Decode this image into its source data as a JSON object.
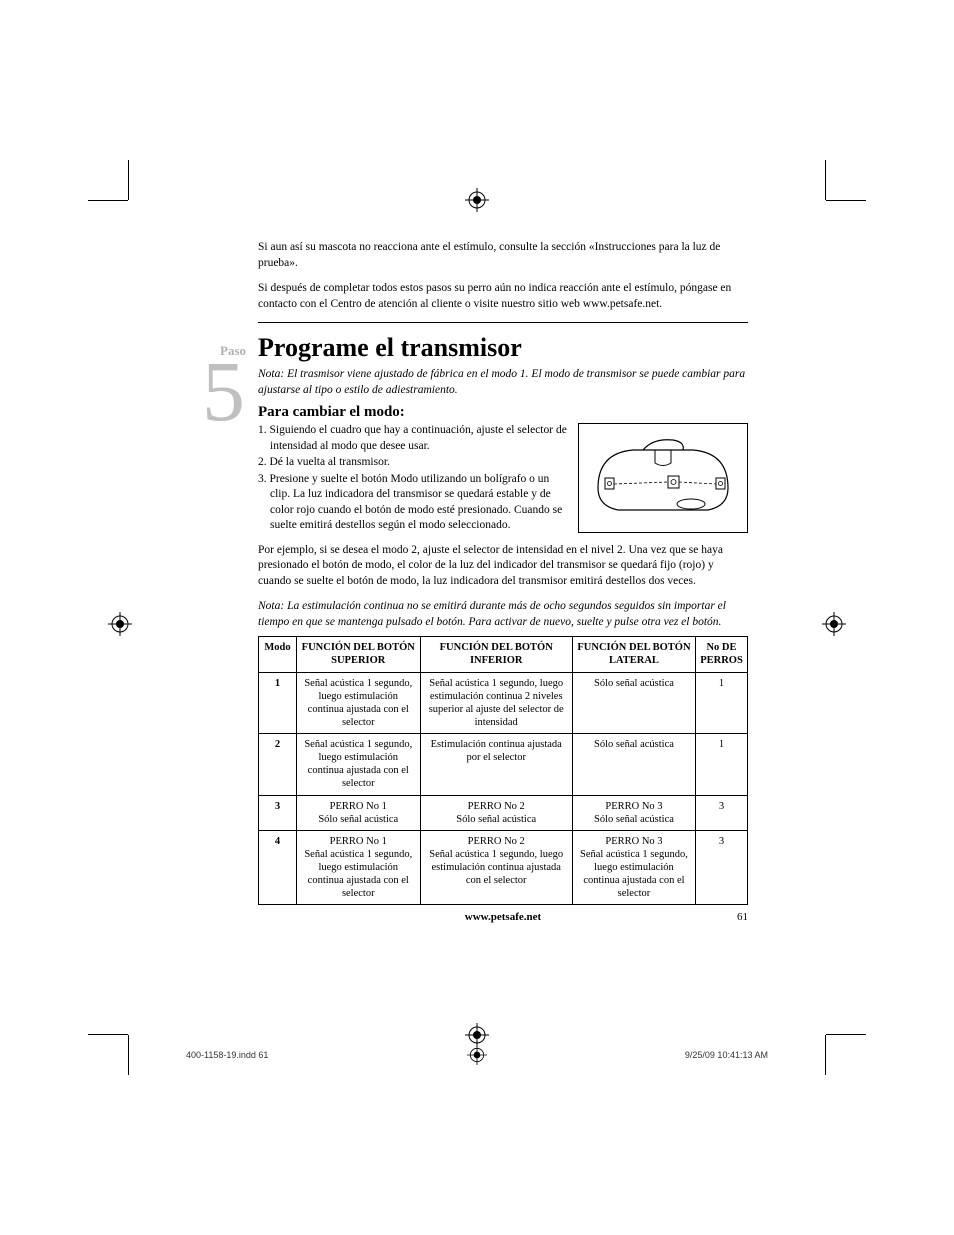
{
  "intro": {
    "p1": "Si aun así su mascota no reacciona ante el estímulo, consulte la sección «Instrucciones para la luz de prueba».",
    "p2": "Si después de completar todos estos pasos su perro aún no indica reacción ante el estímulo, póngase en contacto con el Centro de atención al cliente o visite nuestro sitio web www.petsafe.net."
  },
  "step": {
    "label": "Paso",
    "number": "5",
    "title": "Programe el transmisor",
    "note1": "Nota: El trasmisor viene ajustado de fábrica en el modo 1. El modo de transmisor se puede cambiar para ajustarse al tipo o estilo de adiestramiento.",
    "subtitle": "Para cambiar el modo:",
    "s1": "1. Siguiendo el cuadro que hay a continuación, ajuste el selector de intensidad al modo que desee usar.",
    "s2": "2.  Dé la vuelta al transmisor.",
    "s3": "3. Presione y suelte el botón Modo utilizando un bolígrafo o un clip. La luz indicadora del transmisor se quedará estable y de color rojo  cuando el botón de modo esté presionado. Cuando se suelte emitirá destellos según el modo seleccionado.",
    "example": "Por ejemplo, si se desea el modo 2, ajuste el selector de intensidad en el nivel 2. Una vez que se haya presionado el botón de modo, el color de la luz del indicador del transmisor se quedará fijo (rojo) y cuando se suelte el botón de modo, la luz indicadora del transmisor emitirá destellos dos veces.",
    "note2": "Nota: La estimulación continua no se emitirá durante más de ocho segundos seguidos sin importar el tiempo en que se mantenga pulsado el botón.  Para activar de nuevo, suelte y pulse otra vez el botón."
  },
  "table": {
    "headers": {
      "mode": "Modo",
      "upper": "FUNCIÓN DEL BOTÓN SUPERIOR",
      "lower": "FUNCIÓN DEL BOTÓN INFERIOR",
      "side": "FUNCIÓN DEL BOTÓN LATERAL",
      "dogs": "No DE PERROS"
    },
    "rows": [
      {
        "mode": "1",
        "upper": "Señal acústica 1 segundo, luego estimulación continua ajustada con el selector",
        "lower": "Señal acústica 1 segundo, luego estimulación continua 2 niveles superior al ajuste del selector de intensidad",
        "side": "Sólo  señal acústica",
        "dogs": "1"
      },
      {
        "mode": "2",
        "upper": "Señal acústica 1 segundo, luego estimulación continua ajustada con el selector",
        "lower": "Estimulación continua ajustada por el selector",
        "side": "Sólo señal acústica",
        "dogs": "1"
      },
      {
        "mode": "3",
        "upper": "PERRO No 1\nSólo señal acústica",
        "lower": "PERRO No 2\nSólo señal acústica",
        "side": "PERRO No 3\nSólo señal acústica",
        "dogs": "3"
      },
      {
        "mode": "4",
        "upper": "PERRO No 1\nSeñal acústica 1 segundo, luego estimulación continua ajustada con el selector",
        "lower": "PERRO No 2\nSeñal acústica 1 segundo, luego estimulación continua ajustada con el selector",
        "side": "PERRO No 3\nSeñal acústica 1 segundo, luego estimulación continua ajustada con el selector",
        "dogs": "3"
      }
    ]
  },
  "footer": {
    "url": "www.petsafe.net",
    "page": "61"
  },
  "meta": {
    "file": "400-1158-19.indd   61",
    "timestamp": "9/25/09   10:41:13 AM"
  }
}
